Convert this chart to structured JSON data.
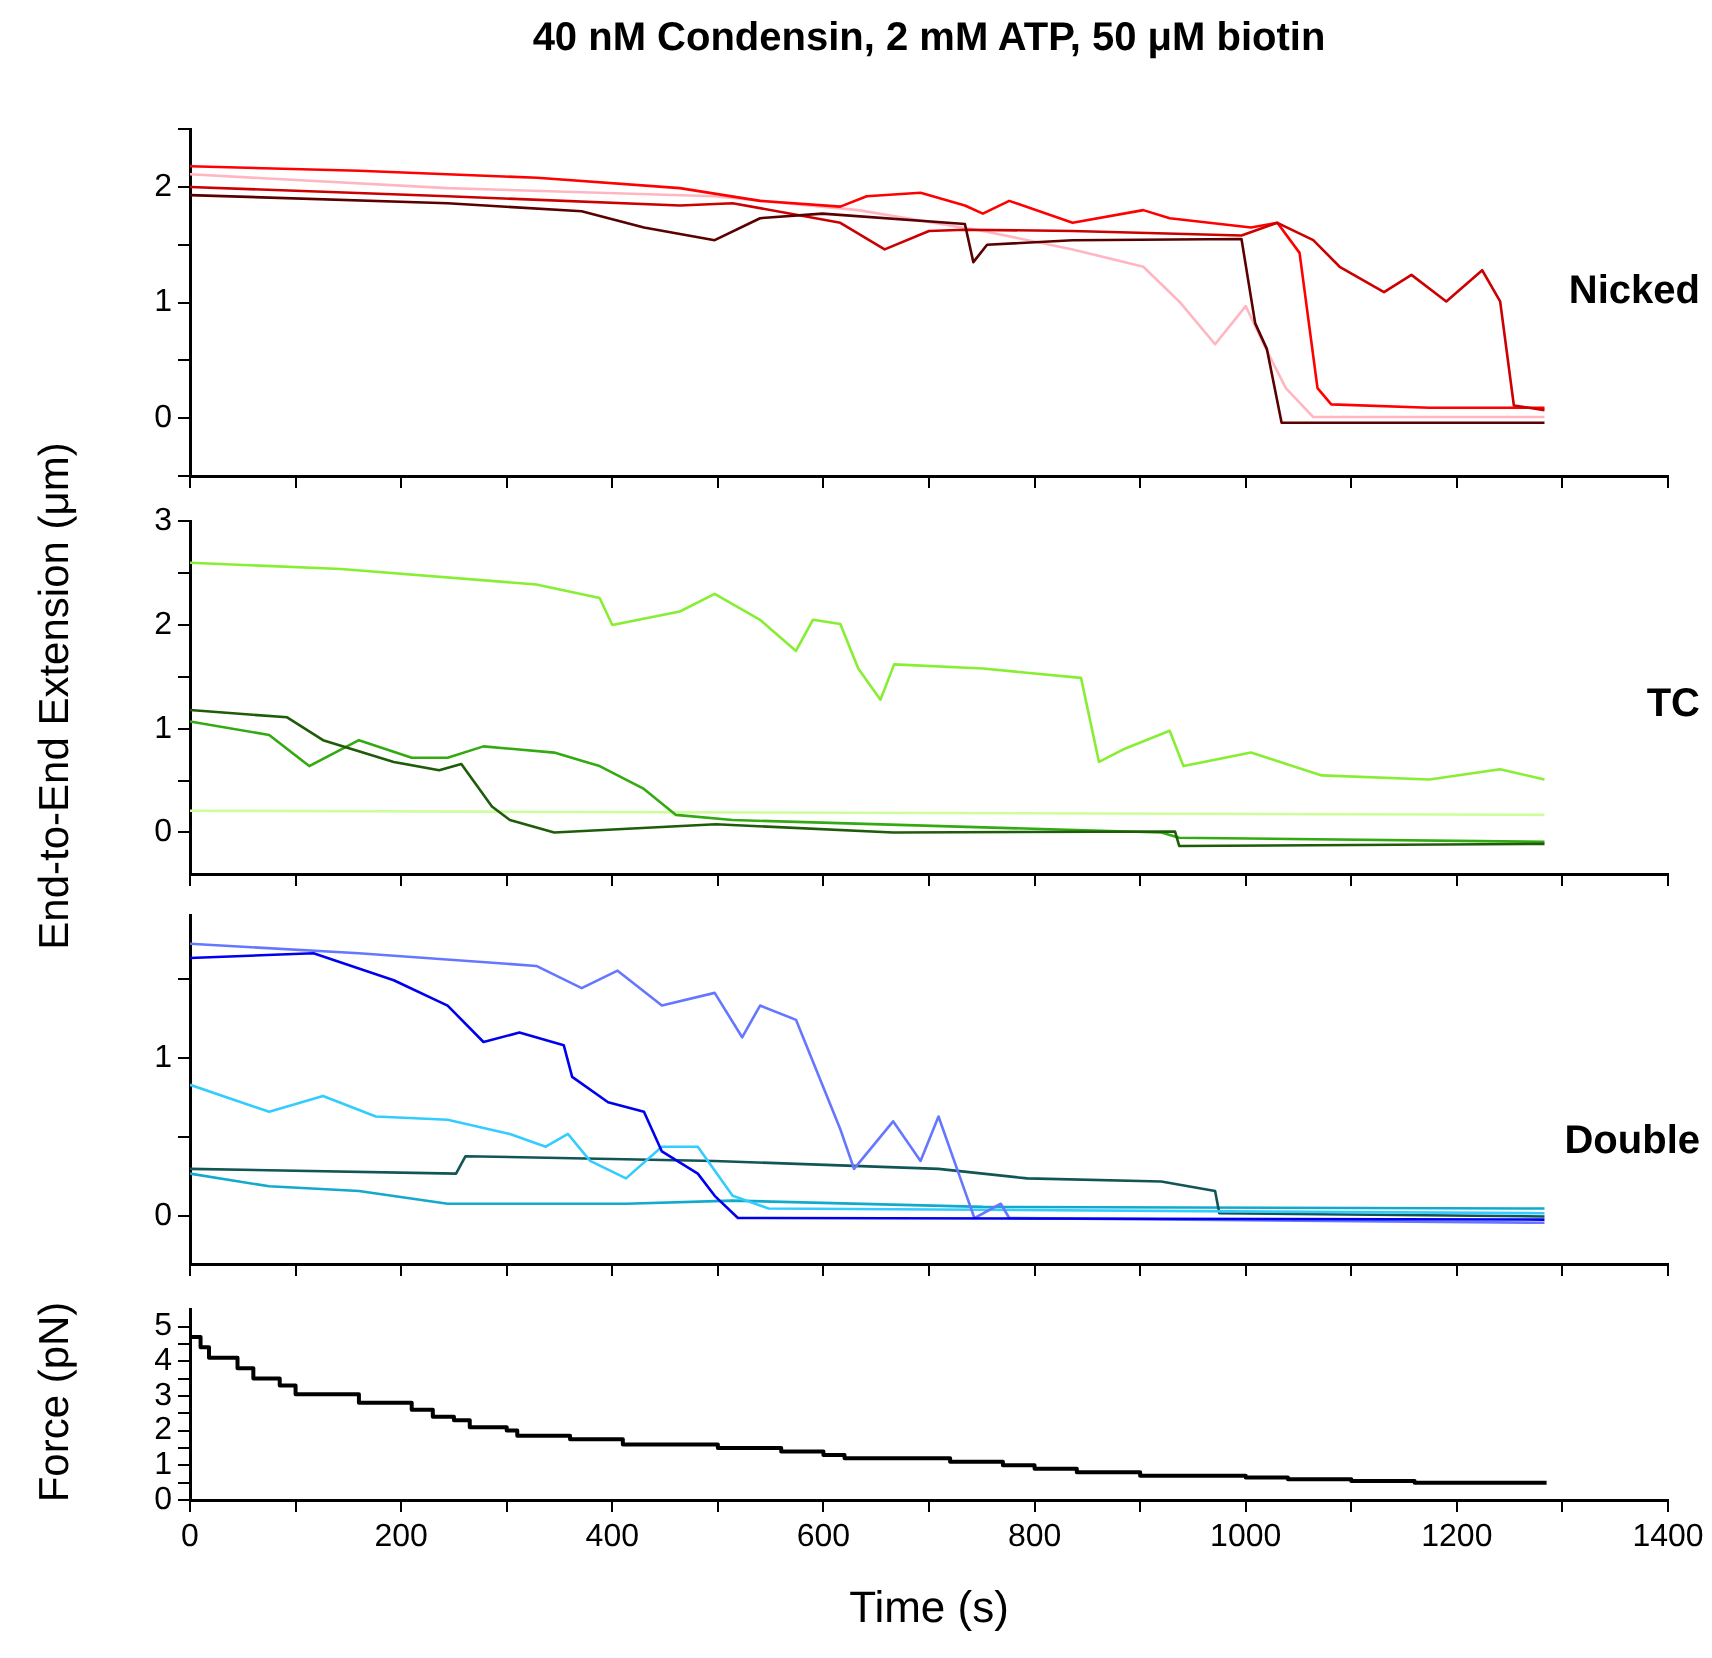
{
  "chart_data": [
    {
      "type": "line",
      "title": "40 nM Condensin, 2 mM ATP, 50 μM biotin",
      "annotations": [
        "Nicked"
      ],
      "tick_labels": "y",
      "marker": "none",
      "xlim": [
        0,
        1400
      ],
      "xticks": [
        0,
        {
          "value": 100,
          "label": null
        },
        200,
        {
          "value": 300,
          "label": null
        },
        400,
        {
          "value": 500,
          "label": null
        },
        600,
        {
          "value": 700,
          "label": null
        },
        800,
        {
          "value": 900,
          "label": null
        },
        1000,
        {
          "value": 1100,
          "label": null
        },
        1200,
        {
          "value": 1300,
          "label": null
        },
        1400
      ],
      "ylim": [
        -0.5,
        2.5
      ],
      "yticks": [
        {
          "value": -0.5,
          "label": null
        },
        0,
        {
          "value": 0.5,
          "label": null
        },
        1,
        {
          "value": 1.5,
          "label": null
        },
        2,
        {
          "value": 2.5,
          "label": null
        }
      ],
      "series": [
        {
          "color": "#ffb6c1",
          "x": [
            0,
            244,
            497,
            633,
            751,
            836,
            903,
            937,
            971,
            1000,
            1017,
            1038,
            1064,
            1283
          ],
          "values": [
            2.11,
            1.99,
            1.92,
            1.8,
            1.62,
            1.46,
            1.31,
            1.01,
            0.64,
            0.97,
            0.64,
            0.26,
            0.01,
            0.01
          ]
        },
        {
          "color": "#ff0000",
          "x": [
            0,
            160,
            329,
            464,
            540,
            616,
            641,
            692,
            734,
            751,
            776,
            836,
            903,
            928,
            1005,
            1030,
            1051,
            1068,
            1081,
            1174,
            1283
          ],
          "values": [
            2.18,
            2.14,
            2.08,
            1.99,
            1.88,
            1.83,
            1.92,
            1.95,
            1.84,
            1.77,
            1.88,
            1.69,
            1.8,
            1.73,
            1.65,
            1.69,
            1.43,
            0.26,
            0.12,
            0.09,
            0.09
          ]
        },
        {
          "color": "#cc0000",
          "x": [
            0,
            244,
            464,
            514,
            616,
            658,
            700,
            734,
            836,
            996,
            1030,
            1064,
            1089,
            1131,
            1157,
            1190,
            1224,
            1241,
            1254,
            1283
          ],
          "values": [
            2.0,
            1.92,
            1.84,
            1.86,
            1.69,
            1.46,
            1.62,
            1.63,
            1.62,
            1.58,
            1.69,
            1.54,
            1.31,
            1.09,
            1.24,
            1.01,
            1.28,
            1.01,
            0.11,
            0.07
          ]
        },
        {
          "color": "#5a0000",
          "x": [
            0,
            244,
            371,
            430,
            497,
            540,
            599,
            734,
            742,
            755,
            836,
            996,
            1009,
            1020,
            1034,
            1283
          ],
          "values": [
            1.93,
            1.86,
            1.79,
            1.65,
            1.54,
            1.73,
            1.77,
            1.68,
            1.35,
            1.5,
            1.54,
            1.55,
            0.82,
            0.6,
            -0.04,
            -0.04
          ]
        }
      ]
    },
    {
      "type": "line",
      "ylabel": "End-to-End Extension (μm)",
      "annotations": [
        "TC"
      ],
      "tick_labels": "y",
      "marker": "none",
      "xlim": [
        0,
        1400
      ],
      "xticks": [
        0,
        {
          "value": 100,
          "label": null
        },
        200,
        {
          "value": 300,
          "label": null
        },
        400,
        {
          "value": 500,
          "label": null
        },
        600,
        {
          "value": 700,
          "label": null
        },
        800,
        {
          "value": 900,
          "label": null
        },
        1000,
        {
          "value": 1100,
          "label": null
        },
        1200,
        {
          "value": 1300,
          "label": null
        },
        1400
      ],
      "ylim": [
        -0.4,
        3
      ],
      "yticks": [
        0,
        {
          "value": 0.5,
          "label": null
        },
        1,
        {
          "value": 1.5,
          "label": null
        },
        2,
        {
          "value": 2.5,
          "label": null
        },
        3
      ],
      "series": [
        {
          "color": "#ccff99",
          "x": [
            0,
            640,
            1283
          ],
          "values": [
            0.21,
            0.19,
            0.17
          ]
        },
        {
          "color": "#88ee33",
          "x": [
            0,
            143,
            328,
            388,
            400,
            464,
            497,
            540,
            574,
            590,
            616,
            633,
            654,
            667,
            751,
            844,
            861,
            886,
            928,
            941,
            1005,
            1072,
            1174,
            1241,
            1283
          ],
          "values": [
            2.6,
            2.54,
            2.39,
            2.26,
            2.0,
            2.13,
            2.3,
            2.05,
            1.75,
            2.05,
            2.01,
            1.58,
            1.28,
            1.62,
            1.58,
            1.49,
            0.68,
            0.81,
            0.98,
            0.64,
            0.77,
            0.55,
            0.51,
            0.61,
            0.51
          ]
        },
        {
          "color": "#33aa11",
          "x": [
            0,
            75,
            113,
            160,
            210,
            244,
            278,
            345,
            388,
            430,
            460,
            514,
            920,
            937,
            1283
          ],
          "values": [
            1.07,
            0.94,
            0.64,
            0.89,
            0.72,
            0.72,
            0.83,
            0.77,
            0.64,
            0.42,
            0.17,
            0.12,
            0.0,
            -0.05,
            -0.09
          ]
        },
        {
          "color": "#1e5c0a",
          "x": [
            0,
            92,
            126,
            193,
            236,
            257,
            286,
            303,
            345,
            498,
            666,
            933,
            937,
            1283
          ],
          "values": [
            1.18,
            1.11,
            0.89,
            0.68,
            0.6,
            0.66,
            0.25,
            0.12,
            0.0,
            0.08,
            0.0,
            0.01,
            -0.13,
            -0.11
          ]
        }
      ]
    },
    {
      "type": "line",
      "annotations": [
        "Double"
      ],
      "tick_labels": "y",
      "marker": "none",
      "xlim": [
        0,
        1400
      ],
      "xticks": [
        0,
        {
          "value": 100,
          "label": null
        },
        200,
        {
          "value": 300,
          "label": null
        },
        400,
        {
          "value": 500,
          "label": null
        },
        600,
        {
          "value": 700,
          "label": null
        },
        800,
        {
          "value": 900,
          "label": null
        },
        1000,
        {
          "value": 1100,
          "label": null
        },
        1200,
        {
          "value": 1300,
          "label": null
        },
        1400
      ],
      "ylim": [
        -0.3,
        1.9
      ],
      "yticks": [
        0,
        {
          "value": 0.5,
          "label": null
        },
        1,
        {
          "value": 1.5,
          "label": null
        }
      ],
      "series": [
        {
          "color": "#11aacc",
          "x": [
            0,
            75,
            160,
            244,
            413,
            514,
            751,
            1283
          ],
          "values": [
            0.27,
            0.19,
            0.16,
            0.08,
            0.08,
            0.1,
            0.06,
            0.05
          ]
        },
        {
          "color": "#115555",
          "x": [
            0,
            252,
            261,
            497,
            709,
            793,
            920,
            971,
            975,
            1283
          ],
          "values": [
            0.3,
            0.27,
            0.38,
            0.35,
            0.3,
            0.24,
            0.22,
            0.16,
            0.02,
            0.0
          ]
        },
        {
          "color": "#33ccff",
          "x": [
            0,
            75,
            126,
            176,
            244,
            303,
            337,
            358,
            379,
            413,
            447,
            481,
            514,
            548,
            1283
          ],
          "values": [
            0.83,
            0.66,
            0.76,
            0.63,
            0.61,
            0.52,
            0.44,
            0.52,
            0.35,
            0.24,
            0.44,
            0.44,
            0.13,
            0.05,
            0.02
          ]
        },
        {
          "color": "#6677ff",
          "x": [
            0,
            160,
            328,
            371,
            405,
            447,
            497,
            523,
            540,
            574,
            616,
            629,
            666,
            692,
            709,
            734,
            743,
            768,
            776,
            1283
          ],
          "values": [
            1.72,
            1.66,
            1.58,
            1.44,
            1.55,
            1.33,
            1.41,
            1.13,
            1.33,
            1.24,
            0.55,
            0.3,
            0.6,
            0.35,
            0.63,
            0.16,
            -0.01,
            0.08,
            -0.01,
            -0.04
          ]
        },
        {
          "color": "#0000ee",
          "x": [
            0,
            117,
            193,
            244,
            278,
            312,
            354,
            362,
            396,
            430,
            447,
            481,
            497,
            519,
            1283
          ],
          "values": [
            1.63,
            1.66,
            1.49,
            1.33,
            1.1,
            1.16,
            1.08,
            0.88,
            0.72,
            0.66,
            0.41,
            0.27,
            0.13,
            -0.01,
            -0.02
          ]
        }
      ]
    },
    {
      "type": "step",
      "xlabel": "Time (s)",
      "ylabel": "Force (pN)",
      "marker": "none",
      "xlim": [
        0,
        1400
      ],
      "xticks": [
        0,
        {
          "value": 100,
          "label": null
        },
        200,
        {
          "value": 300,
          "label": null
        },
        400,
        {
          "value": 500,
          "label": null
        },
        600,
        {
          "value": 700,
          "label": null
        },
        800,
        {
          "value": 900,
          "label": null
        },
        1000,
        {
          "value": 1100,
          "label": null
        },
        1200,
        {
          "value": 1300,
          "label": null
        },
        1400
      ],
      "ylim": [
        0,
        5.5
      ],
      "yticks": [
        0,
        {
          "value": 0.5,
          "label": null
        },
        1,
        {
          "value": 1.5,
          "label": null
        },
        2,
        {
          "value": 2.5,
          "label": null
        },
        3,
        {
          "value": 3.5,
          "label": null
        },
        4,
        {
          "value": 4.5,
          "label": null
        },
        5
      ],
      "series": [
        {
          "color": "#000000",
          "x": [
            0,
            10,
            18,
            45,
            60,
            85,
            100,
            160,
            210,
            230,
            250,
            265,
            300,
            310,
            360,
            410,
            500,
            560,
            600,
            620,
            720,
            770,
            800,
            840,
            900,
            1000,
            1040,
            1100,
            1160,
            1200,
            1285
          ],
          "values": [
            5.1,
            4.7,
            4.4,
            4.1,
            3.8,
            3.5,
            3.3,
            3.05,
            2.8,
            2.6,
            2.4,
            2.3,
            2.1,
            2.0,
            1.85,
            1.75,
            1.6,
            1.5,
            1.4,
            1.3,
            1.2,
            1.1,
            1.0,
            0.9,
            0.8,
            0.7,
            0.65,
            0.6,
            0.55,
            0.5,
            0.5
          ]
        }
      ]
    }
  ]
}
